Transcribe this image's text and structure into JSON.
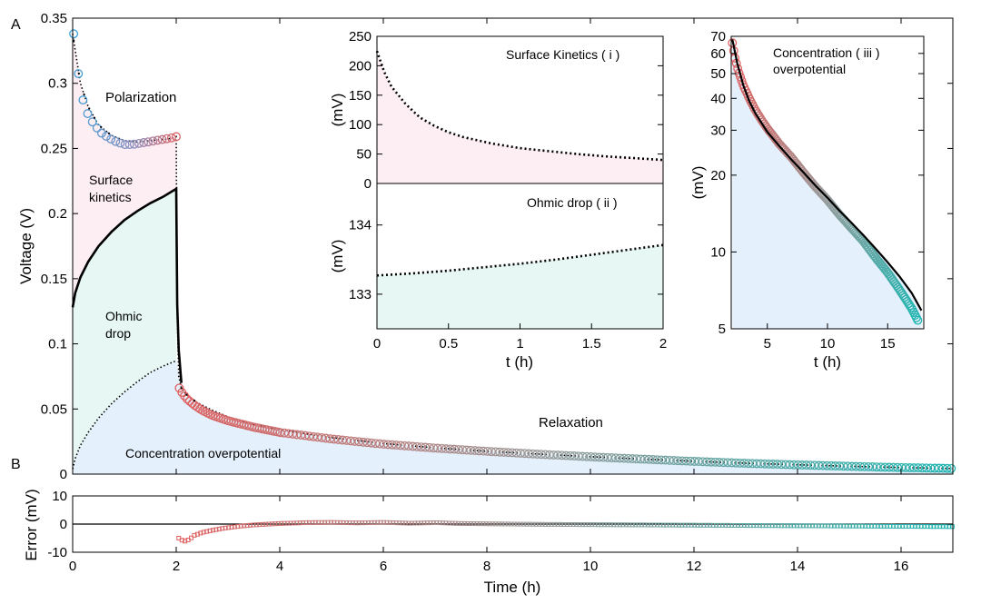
{
  "chart_data": [
    {
      "id": "A-main",
      "panel_label": "A",
      "type": "scatter",
      "xlabel": "",
      "ylabel": "Voltage (V)",
      "xlim": [
        0,
        17
      ],
      "ylim": [
        0,
        0.35
      ],
      "yticks": [
        "0",
        "0.05",
        "0.1",
        "0.15",
        "0.2",
        "0.25",
        "0.3",
        "0.35"
      ],
      "ytick_values": [
        0,
        0.05,
        0.1,
        0.15,
        0.2,
        0.25,
        0.3,
        0.35
      ],
      "xtick_values": [
        0,
        2,
        4,
        6,
        8,
        10,
        12,
        14,
        16
      ],
      "colors": {
        "start": "#3aa0d8",
        "mid": "#e06060",
        "end": "#1fb5b0",
        "surface_fill": "#fdeef3",
        "ohmic_fill": "#e6f7f4",
        "conc_fill": "#e4f0fb"
      },
      "annotations": {
        "polarization": "Polarization",
        "surface_1": "Surface",
        "surface_2": "kinetics",
        "ohmic_1": "Ohmic",
        "ohmic_2": "drop",
        "concentration": "Concentration overpotential",
        "relaxation": "Relaxation"
      },
      "series": [
        {
          "kind": "measured",
          "x": [
            0.02,
            0.12,
            0.22,
            0.32,
            0.42,
            0.55,
            0.7,
            0.85,
            1.0,
            1.15,
            1.3,
            1.45,
            1.6,
            1.75,
            1.9,
            2.0,
            2.06,
            2.12,
            2.2,
            2.35,
            2.5,
            2.7,
            3.0,
            3.5,
            4.0,
            5.0,
            6.0,
            7.0,
            8.0,
            9.0,
            10.0,
            11.0,
            12.0,
            13.0,
            14.0,
            15.0,
            16.0,
            16.6,
            17.0
          ],
          "y": [
            0.338,
            0.304,
            0.283,
            0.274,
            0.268,
            0.262,
            0.258,
            0.255,
            0.253,
            0.253,
            0.254,
            0.255,
            0.256,
            0.257,
            0.258,
            0.259,
            0.066,
            0.062,
            0.058,
            0.053,
            0.049,
            0.045,
            0.041,
            0.036,
            0.032,
            0.027,
            0.023,
            0.02,
            0.0175,
            0.0153,
            0.0133,
            0.0115,
            0.0098,
            0.0083,
            0.0071,
            0.006,
            0.005,
            0.0046,
            0.0043
          ]
        },
        {
          "kind": "model-total",
          "x": [
            0,
            0.15,
            0.3,
            0.5,
            0.75,
            1.0,
            1.25,
            1.5,
            1.75,
            1.95,
            2.0,
            2.02,
            2.05,
            2.1,
            2.2,
            2.4,
            2.7,
            3.0,
            3.5,
            4.0,
            5.0,
            6.0,
            7.0,
            8.0,
            9.0,
            10.0,
            11.0,
            12.0,
            13.0,
            14.0,
            15.0,
            16.0,
            17.0
          ],
          "y": [
            0.338,
            0.3,
            0.282,
            0.268,
            0.26,
            0.256,
            0.255,
            0.256,
            0.257,
            0.258,
            0.259,
            0.12,
            0.075,
            0.066,
            0.061,
            0.055,
            0.049,
            0.044,
            0.038,
            0.034,
            0.028,
            0.0235,
            0.0202,
            0.0176,
            0.0154,
            0.0134,
            0.0116,
            0.0099,
            0.0084,
            0.0072,
            0.0061,
            0.0051,
            0.0043
          ]
        },
        {
          "kind": "ohmic-boundary",
          "x": [
            0,
            0.05,
            0.15,
            0.3,
            0.5,
            0.75,
            1.0,
            1.25,
            1.5,
            1.75,
            2.0,
            2.02,
            2.05,
            2.1
          ],
          "y": [
            0.128,
            0.139,
            0.151,
            0.163,
            0.175,
            0.186,
            0.195,
            0.202,
            0.208,
            0.213,
            0.219,
            0.13,
            0.095,
            0.07
          ]
        },
        {
          "kind": "concentration-boundary",
          "x": [
            0,
            0.05,
            0.15,
            0.3,
            0.5,
            0.75,
            1.0,
            1.25,
            1.5,
            1.75,
            2.0
          ],
          "y": [
            0.004,
            0.012,
            0.022,
            0.032,
            0.043,
            0.054,
            0.063,
            0.071,
            0.078,
            0.083,
            0.087
          ]
        }
      ]
    },
    {
      "id": "inset-i",
      "type": "line",
      "title": "Surface Kinetics ( i )",
      "xlabel": "",
      "ylabel": "(mV)",
      "xlim": [
        0,
        2
      ],
      "ylim": [
        0,
        250
      ],
      "yticks": [
        "0",
        "50",
        "100",
        "150",
        "200",
        "250"
      ],
      "ytick_values": [
        0,
        50,
        100,
        150,
        200,
        250
      ],
      "fill": "#fdeef3",
      "x": [
        0,
        0.05,
        0.1,
        0.2,
        0.3,
        0.4,
        0.5,
        0.6,
        0.8,
        1.0,
        1.2,
        1.4,
        1.6,
        1.8,
        2.0
      ],
      "y": [
        225,
        190,
        165,
        135,
        112,
        98,
        87,
        79,
        68,
        60,
        55,
        50,
        46,
        43,
        40
      ]
    },
    {
      "id": "inset-ii",
      "type": "line",
      "title": "Ohmic drop ( ii )",
      "xlabel": "t (h)",
      "ylabel": "(mV)",
      "xlim": [
        0,
        2
      ],
      "ylim": [
        132.5,
        134.6
      ],
      "xticks": [
        "0",
        "0.5",
        "1",
        "1.5",
        "2"
      ],
      "xtick_values": [
        0,
        0.5,
        1,
        1.5,
        2
      ],
      "yticks": [
        "133",
        "134"
      ],
      "ytick_values": [
        133,
        134
      ],
      "fill": "#e6f7f4",
      "x": [
        0,
        0.25,
        0.5,
        0.75,
        1.0,
        1.25,
        1.5,
        1.75,
        2.0
      ],
      "y": [
        133.27,
        133.3,
        133.34,
        133.39,
        133.44,
        133.5,
        133.57,
        133.64,
        133.71
      ]
    },
    {
      "id": "inset-iii",
      "type": "scatter",
      "title_1": "Concentration ( iii )",
      "title_2": "overpotential",
      "xlabel": "t (h)",
      "ylabel": "(mV)",
      "yscale": "log",
      "xlim": [
        2,
        18
      ],
      "ylim": [
        5,
        70
      ],
      "xticks": [
        "5",
        "10",
        "15"
      ],
      "xtick_values": [
        5,
        10,
        15
      ],
      "yticks": [
        "5",
        "10",
        "20",
        "30",
        "40",
        "50",
        "60",
        "70"
      ],
      "ytick_values": [
        5,
        10,
        20,
        30,
        40,
        50,
        60,
        70
      ],
      "fill": "#e4f0fb",
      "measured": {
        "x": [
          2.1,
          2.3,
          2.6,
          3.0,
          3.5,
          4.0,
          4.5,
          5.0,
          6.0,
          7.0,
          8.0,
          9.0,
          10.0,
          11.0,
          12.0,
          13.0,
          14.0,
          15.0,
          16.0,
          17.0,
          17.5
        ],
        "y": [
          66,
          58,
          51,
          45,
          40,
          36,
          33,
          30.5,
          26.5,
          23.5,
          20.5,
          18,
          16,
          14,
          12.4,
          11,
          9.5,
          8.3,
          7.1,
          6,
          5.4
        ]
      },
      "model": {
        "x": [
          2.1,
          2.5,
          3.0,
          3.5,
          4.0,
          5.0,
          6.0,
          7.0,
          8.0,
          9.0,
          10.0,
          11.0,
          12.0,
          13.0,
          14.0,
          15.0,
          16.0,
          17.0,
          17.8
        ],
        "y": [
          68,
          55,
          45,
          39,
          35,
          29.5,
          26,
          23,
          20.5,
          18.2,
          16.3,
          14.5,
          13,
          11.6,
          10.3,
          9.1,
          8,
          6.9,
          5.9
        ]
      }
    },
    {
      "id": "B-error",
      "panel_label": "B",
      "type": "scatter",
      "xlabel": "Time (h)",
      "ylabel": "Error  (mV)",
      "xlim": [
        0,
        17
      ],
      "ylim": [
        -10,
        10
      ],
      "xticks": [
        "0",
        "2",
        "4",
        "6",
        "8",
        "10",
        "12",
        "14",
        "16"
      ],
      "xtick_values": [
        0,
        2,
        4,
        6,
        8,
        10,
        12,
        14,
        16
      ],
      "yticks": [
        "-10",
        "0",
        "10"
      ],
      "ytick_values": [
        -10,
        0,
        10
      ],
      "x": [
        2.05,
        2.15,
        2.25,
        2.35,
        2.5,
        2.7,
        2.9,
        3.2,
        3.5,
        4.0,
        4.5,
        5.0,
        5.5,
        6.0,
        6.5,
        7.0,
        7.5,
        8.0,
        8.5,
        9.0,
        10.0,
        11.0,
        12.0,
        13.0,
        14.0,
        15.0,
        16.0,
        17.0
      ],
      "y": [
        -5,
        -6.2,
        -5.5,
        -4.0,
        -3.0,
        -2.2,
        -1.5,
        -0.8,
        -0.3,
        0.2,
        0.5,
        0.6,
        0.4,
        0.6,
        0.3,
        0.5,
        0.2,
        0.1,
        0.0,
        -0.1,
        -0.2,
        -0.3,
        -0.4,
        -0.5,
        -0.6,
        -0.7,
        -0.8,
        -0.9
      ]
    }
  ]
}
